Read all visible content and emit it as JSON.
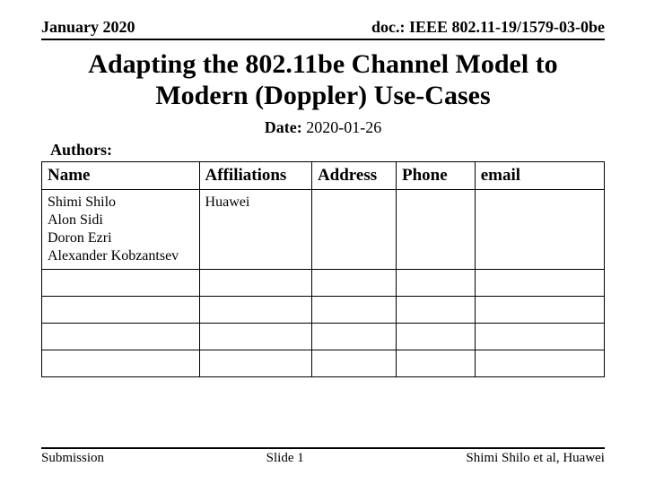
{
  "header": {
    "left": "January 2020",
    "right": "doc.: IEEE 802.11-19/1579-03-0be"
  },
  "title_lines": [
    "Adapting the 802.11be Channel Model to",
    "Modern (Doppler) Use-Cases"
  ],
  "date": {
    "label": "Date:",
    "value": "2020-01-26"
  },
  "authors_label": "Authors:",
  "table": {
    "columns": [
      {
        "label": "Name",
        "width": "28%"
      },
      {
        "label": "Affiliations",
        "width": "20%"
      },
      {
        "label": "Address",
        "width": "15%"
      },
      {
        "label": "Phone",
        "width": "14%"
      },
      {
        "label": "email",
        "width": "23%"
      }
    ],
    "rows": [
      {
        "name_lines": [
          "Shimi Shilo",
          "Alon Sidi",
          "Doron Ezri",
          "Alexander Kobzantsev"
        ],
        "affiliations": "Huawei",
        "address": "",
        "phone": "",
        "email": ""
      },
      {
        "name_lines": [
          ""
        ],
        "affiliations": "",
        "address": "",
        "phone": "",
        "email": ""
      },
      {
        "name_lines": [
          ""
        ],
        "affiliations": "",
        "address": "",
        "phone": "",
        "email": ""
      },
      {
        "name_lines": [
          ""
        ],
        "affiliations": "",
        "address": "",
        "phone": "",
        "email": ""
      },
      {
        "name_lines": [
          ""
        ],
        "affiliations": "",
        "address": "",
        "phone": "",
        "email": ""
      }
    ]
  },
  "footer": {
    "left": "Submission",
    "center": "Slide 1",
    "right": "Shimi Shilo et al, Huawei"
  },
  "colors": {
    "fg": "#000000",
    "bg": "#ffffff"
  }
}
